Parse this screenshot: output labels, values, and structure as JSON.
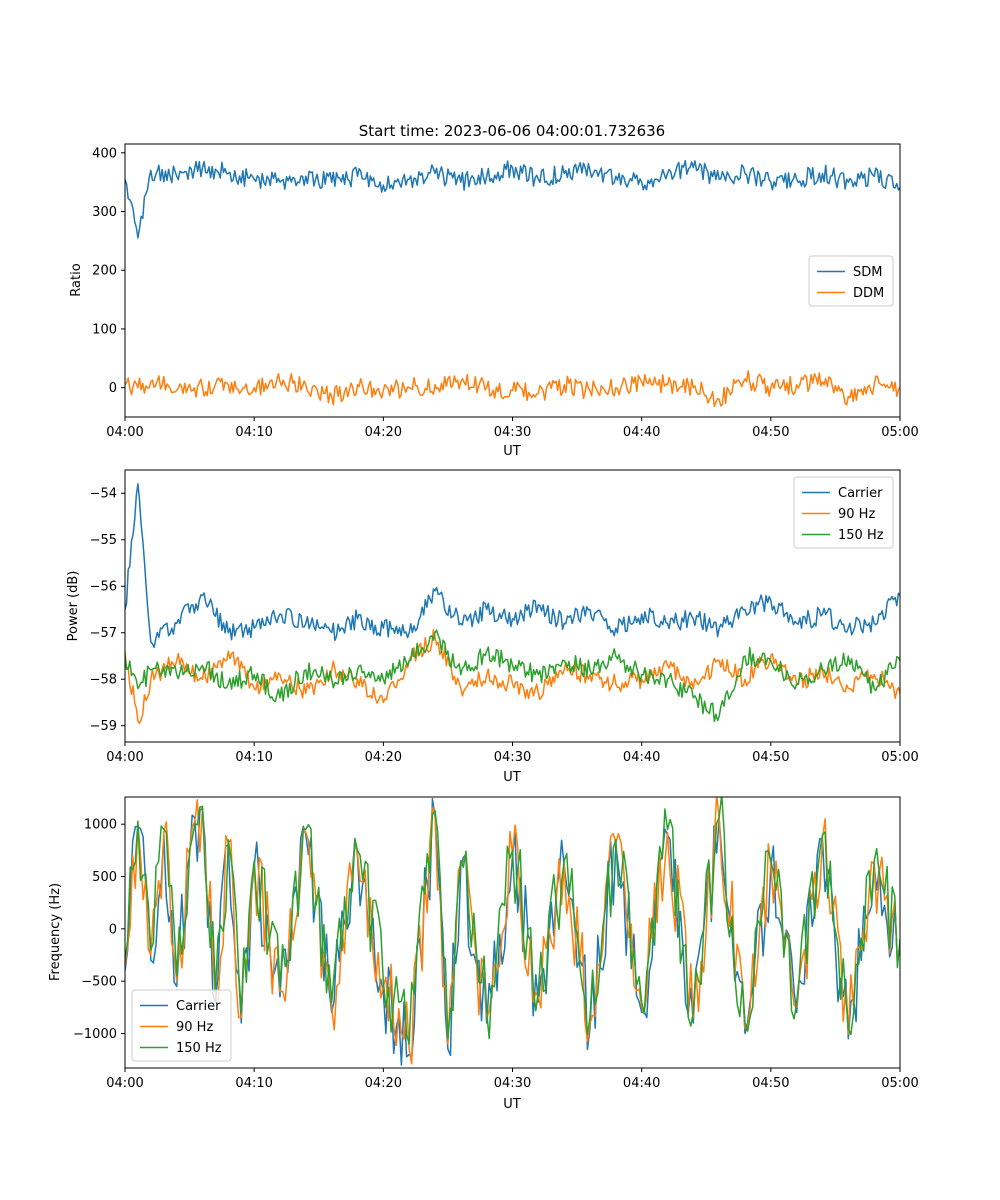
{
  "chart_data": [
    {
      "type": "line",
      "title": "Start time: 2023-06-06 04:00:01.732636",
      "xlabel": "UT",
      "ylabel": "Ratio",
      "xlim": [
        "04:00",
        "05:00"
      ],
      "ylim": [
        -50,
        415
      ],
      "x_ticks": [
        "04:00",
        "04:10",
        "04:20",
        "04:30",
        "04:40",
        "04:50",
        "05:00"
      ],
      "y_ticks": [
        0,
        100,
        200,
        300,
        400
      ],
      "y_tick_labels": [
        "0",
        "100",
        "200",
        "300",
        "400"
      ],
      "grid": false,
      "legend_position": "center-right",
      "x": [
        "04:00",
        "04:01",
        "04:02",
        "04:04",
        "04:06",
        "04:08",
        "04:10",
        "04:12",
        "04:14",
        "04:16",
        "04:18",
        "04:20",
        "04:22",
        "04:24",
        "04:26",
        "04:28",
        "04:30",
        "04:32",
        "04:34",
        "04:36",
        "04:38",
        "04:40",
        "04:42",
        "04:44",
        "04:46",
        "04:48",
        "04:50",
        "04:52",
        "04:54",
        "04:56",
        "04:58",
        "05:00"
      ],
      "series": [
        {
          "name": "SDM",
          "color": "#1f77b4",
          "values": [
            355,
            255,
            370,
            360,
            375,
            365,
            355,
            350,
            360,
            350,
            360,
            345,
            355,
            365,
            350,
            360,
            375,
            355,
            365,
            370,
            360,
            350,
            365,
            375,
            355,
            365,
            350,
            355,
            365,
            350,
            360,
            340
          ]
        },
        {
          "name": "DDM",
          "color": "#ff7f0e",
          "values": [
            5,
            0,
            10,
            -5,
            0,
            5,
            0,
            10,
            5,
            -15,
            5,
            -5,
            0,
            5,
            10,
            0,
            -5,
            -10,
            5,
            -5,
            0,
            10,
            5,
            0,
            -20,
            15,
            0,
            5,
            10,
            -15,
            5,
            0
          ]
        }
      ]
    },
    {
      "type": "line",
      "xlabel": "UT",
      "ylabel": "Power (dB)",
      "xlim": [
        "04:00",
        "05:00"
      ],
      "ylim": [
        -59.35,
        -53.5
      ],
      "x_ticks": [
        "04:00",
        "04:10",
        "04:20",
        "04:30",
        "04:40",
        "04:50",
        "05:00"
      ],
      "y_ticks": [
        -54,
        -55,
        -56,
        -57,
        -58,
        -59
      ],
      "y_tick_labels": [
        "−54",
        "−55",
        "−56",
        "−57",
        "−58",
        "−59"
      ],
      "grid": false,
      "legend_position": "top-right",
      "x": [
        "04:00",
        "04:01",
        "04:02",
        "04:04",
        "04:06",
        "04:08",
        "04:10",
        "04:12",
        "04:14",
        "04:16",
        "04:18",
        "04:20",
        "04:22",
        "04:24",
        "04:26",
        "04:28",
        "04:30",
        "04:32",
        "04:34",
        "04:36",
        "04:38",
        "04:40",
        "04:42",
        "04:44",
        "04:46",
        "04:48",
        "04:50",
        "04:52",
        "04:54",
        "04:56",
        "04:58",
        "05:00"
      ],
      "series": [
        {
          "name": "Carrier",
          "color": "#1f77b4",
          "values": [
            -56.5,
            -53.8,
            -57.2,
            -56.8,
            -56.2,
            -57.0,
            -56.9,
            -56.6,
            -56.8,
            -57.0,
            -56.7,
            -56.9,
            -57.0,
            -56.1,
            -56.8,
            -56.5,
            -56.7,
            -56.4,
            -56.8,
            -56.5,
            -56.9,
            -56.6,
            -56.8,
            -56.7,
            -56.9,
            -56.5,
            -56.3,
            -56.8,
            -56.6,
            -56.9,
            -56.8,
            -56.2
          ]
        },
        {
          "name": "90 Hz",
          "color": "#ff7f0e",
          "values": [
            -57.4,
            -58.9,
            -58.0,
            -57.6,
            -58.0,
            -57.4,
            -58.2,
            -57.9,
            -58.3,
            -57.8,
            -58.0,
            -58.5,
            -57.6,
            -57.1,
            -58.2,
            -57.9,
            -58.1,
            -58.3,
            -57.8,
            -57.9,
            -58.1,
            -58.0,
            -57.7,
            -58.2,
            -57.6,
            -58.0,
            -57.5,
            -58.1,
            -57.8,
            -58.2,
            -57.9,
            -58.3
          ]
        },
        {
          "name": "150 Hz",
          "color": "#2ca02c",
          "values": [
            -57.5,
            -58.2,
            -57.8,
            -57.9,
            -57.7,
            -58.1,
            -57.9,
            -58.4,
            -57.8,
            -58.0,
            -57.8,
            -58.0,
            -57.6,
            -57.0,
            -57.9,
            -57.4,
            -57.7,
            -57.9,
            -57.6,
            -57.8,
            -57.5,
            -57.9,
            -58.0,
            -58.4,
            -58.8,
            -57.5,
            -57.6,
            -58.1,
            -57.8,
            -57.5,
            -58.2,
            -57.6
          ]
        }
      ]
    },
    {
      "type": "line",
      "xlabel": "UT",
      "ylabel": "Frequency (Hz)",
      "xlim": [
        "04:00",
        "05:00"
      ],
      "ylim": [
        -1330,
        1260
      ],
      "x_ticks": [
        "04:00",
        "04:10",
        "04:20",
        "04:30",
        "04:40",
        "04:50",
        "05:00"
      ],
      "y_ticks": [
        1000,
        500,
        0,
        -500,
        -1000
      ],
      "y_tick_labels": [
        "1000",
        "500",
        "0",
        "−500",
        "−1000"
      ],
      "grid": false,
      "legend_position": "bottom-left",
      "x": [
        "04:00",
        "04:01",
        "04:02",
        "04:03",
        "04:04",
        "04:05",
        "04:06",
        "04:07",
        "04:08",
        "04:09",
        "04:10",
        "04:12",
        "04:14",
        "04:16",
        "04:18",
        "04:20",
        "04:22",
        "04:24",
        "04:25",
        "04:26",
        "04:28",
        "04:30",
        "04:32",
        "04:34",
        "04:36",
        "04:38",
        "04:40",
        "04:42",
        "04:44",
        "04:46",
        "04:48",
        "04:50",
        "04:52",
        "04:54",
        "04:56",
        "04:58",
        "05:00"
      ],
      "series": [
        {
          "name": "Carrier",
          "color": "#1f77b4",
          "values": [
            -400,
            980,
            -300,
            900,
            -550,
            700,
            1150,
            -700,
            800,
            -900,
            600,
            -650,
            900,
            -800,
            700,
            -600,
            -1200,
            1080,
            -1150,
            600,
            -900,
            700,
            -700,
            600,
            -950,
            800,
            -800,
            900,
            -900,
            1050,
            -1000,
            600,
            -800,
            850,
            -1050,
            600,
            -200
          ]
        },
        {
          "name": "90 Hz",
          "color": "#ff7f0e",
          "values": [
            -350,
            1000,
            -250,
            920,
            -500,
            720,
            1160,
            -650,
            820,
            -850,
            620,
            -600,
            920,
            -750,
            720,
            -550,
            -1150,
            1100,
            -1100,
            620,
            -850,
            720,
            -650,
            620,
            -900,
            820,
            -750,
            920,
            -850,
            1060,
            -950,
            620,
            -750,
            870,
            -1000,
            620,
            -150
          ]
        },
        {
          "name": "150 Hz",
          "color": "#2ca02c",
          "values": [
            -300,
            1030,
            -200,
            950,
            -450,
            750,
            1170,
            -600,
            850,
            -800,
            650,
            -550,
            950,
            -700,
            750,
            -500,
            -1100,
            1130,
            -1050,
            650,
            -800,
            750,
            -600,
            650,
            -850,
            850,
            -700,
            950,
            -800,
            1070,
            -900,
            650,
            -700,
            900,
            -950,
            650,
            -100
          ]
        }
      ]
    }
  ]
}
